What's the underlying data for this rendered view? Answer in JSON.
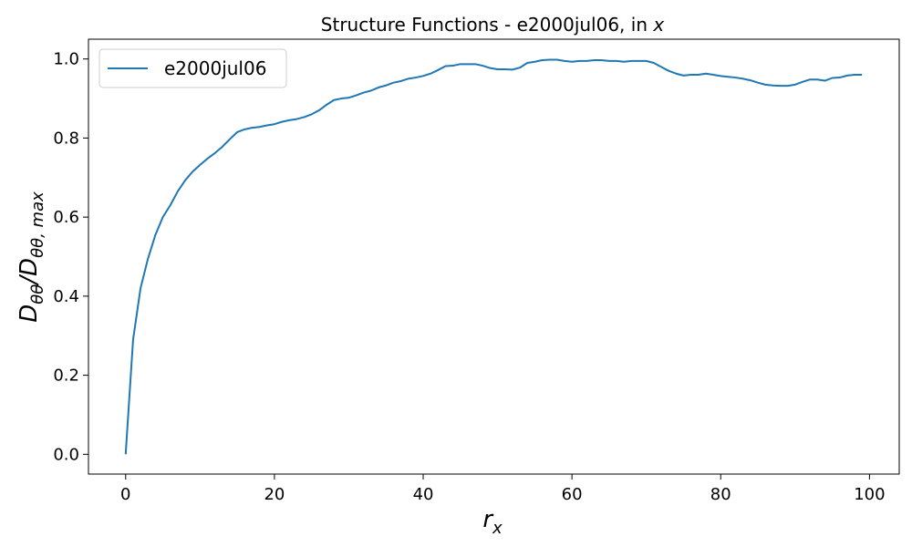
{
  "chart_data": {
    "type": "line",
    "title_main": "Structure Functions - e2000jul06, in ",
    "title_var": "x",
    "xlabel_base": "r",
    "xlabel_sub": "x",
    "ylabel_main": "D",
    "ylabel_sub": "θθ",
    "ylabel_slash": "/",
    "ylabel_main2": "D",
    "ylabel_sub2": "θθ, max",
    "xlim": [
      -5,
      104
    ],
    "ylim": [
      -0.05,
      1.05
    ],
    "xticks": [
      0,
      20,
      40,
      60,
      80,
      100
    ],
    "xtick_labels": [
      "0",
      "20",
      "40",
      "60",
      "80",
      "100"
    ],
    "yticks": [
      0.0,
      0.2,
      0.4,
      0.6,
      0.8,
      1.0
    ],
    "ytick_labels": [
      "0.0",
      "0.2",
      "0.4",
      "0.6",
      "0.8",
      "1.0"
    ],
    "legend_position": "top-left",
    "grid": false,
    "series": [
      {
        "name": "e2000jul06",
        "color": "#1f77b4",
        "x": [
          0,
          1,
          2,
          3,
          4,
          5,
          6,
          7,
          8,
          9,
          10,
          11,
          12,
          13,
          14,
          15,
          16,
          17,
          18,
          19,
          20,
          21,
          22,
          23,
          24,
          25,
          26,
          27,
          28,
          29,
          30,
          31,
          32,
          33,
          34,
          35,
          36,
          37,
          38,
          39,
          40,
          41,
          42,
          43,
          44,
          45,
          46,
          47,
          48,
          49,
          50,
          51,
          52,
          53,
          54,
          55,
          56,
          57,
          58,
          59,
          60,
          61,
          62,
          63,
          64,
          65,
          66,
          67,
          68,
          69,
          70,
          71,
          72,
          73,
          74,
          75,
          76,
          77,
          78,
          79,
          80,
          81,
          82,
          83,
          84,
          85,
          86,
          87,
          88,
          89,
          90,
          91,
          92,
          93,
          94,
          95,
          96,
          97,
          98,
          99
        ],
        "values": [
          0.0,
          0.29,
          0.42,
          0.495,
          0.555,
          0.6,
          0.63,
          0.665,
          0.693,
          0.715,
          0.732,
          0.748,
          0.762,
          0.778,
          0.797,
          0.815,
          0.822,
          0.826,
          0.828,
          0.832,
          0.835,
          0.841,
          0.845,
          0.848,
          0.853,
          0.86,
          0.87,
          0.884,
          0.896,
          0.9,
          0.902,
          0.908,
          0.915,
          0.92,
          0.928,
          0.933,
          0.94,
          0.944,
          0.95,
          0.953,
          0.957,
          0.963,
          0.972,
          0.982,
          0.983,
          0.987,
          0.987,
          0.987,
          0.983,
          0.977,
          0.974,
          0.974,
          0.973,
          0.978,
          0.99,
          0.993,
          0.997,
          0.998,
          0.998,
          0.995,
          0.993,
          0.995,
          0.995,
          0.997,
          0.997,
          0.995,
          0.995,
          0.993,
          0.995,
          0.995,
          0.995,
          0.99,
          0.98,
          0.97,
          0.963,
          0.958,
          0.96,
          0.96,
          0.963,
          0.96,
          0.957,
          0.955,
          0.953,
          0.95,
          0.946,
          0.94,
          0.935,
          0.933,
          0.932,
          0.932,
          0.935,
          0.942,
          0.948,
          0.948,
          0.945,
          0.952,
          0.953,
          0.958,
          0.96,
          0.96
        ]
      }
    ]
  }
}
